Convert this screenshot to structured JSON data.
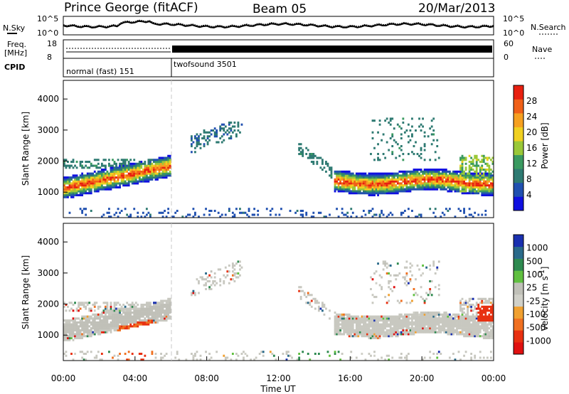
{
  "header": {
    "station": "Prince George (fitACF)",
    "beam": "Beam 05",
    "date": "20/Mar/2013"
  },
  "noise_panel": {
    "left_label": "N.Sky",
    "right_label": "N.Search",
    "left_ticks": [
      "10^5",
      "10^0"
    ],
    "right_ticks": [
      "10^5",
      "10^0"
    ]
  },
  "freq_panel": {
    "left_label_1": "Freq.",
    "left_label_2": "[MHz]",
    "right_label": "Nave",
    "left_ticks": [
      "18",
      "8"
    ],
    "right_ticks": [
      "60",
      "0"
    ]
  },
  "cpid_panel": {
    "label": "CPID",
    "modes": [
      {
        "name": "normal (fast) 151",
        "start_hour": 0,
        "end_hour": 6
      },
      {
        "name": "twofsound 3501",
        "start_hour": 6,
        "end_hour": 24
      }
    ]
  },
  "chart_data": [
    {
      "type": "heatmap",
      "title": "Power",
      "ylabel": "Slant Range [km]",
      "xlabel": "",
      "ylim": [
        180,
        4600
      ],
      "xlim": [
        0,
        24
      ],
      "yticks": [
        "1000",
        "2000",
        "3000",
        "4000"
      ],
      "colorbar": {
        "label": "Power [dB]",
        "ticks": [
          "4",
          "8",
          "12",
          "16",
          "20",
          "24",
          "28"
        ],
        "colors": [
          "#1010e0",
          "#2050b0",
          "#2e7a72",
          "#3a9a60",
          "#9ac838",
          "#f0d020",
          "#f6a020",
          "#f06018",
          "#e82010"
        ]
      }
    },
    {
      "type": "heatmap",
      "title": "Velocity",
      "ylabel": "Slant Range [km]",
      "xlabel": "Time UT",
      "ylim": [
        180,
        4600
      ],
      "xlim": [
        0,
        24
      ],
      "yticks": [
        "1000",
        "2000",
        "3000",
        "4000"
      ],
      "xticks": [
        "00:00",
        "04:00",
        "08:00",
        "12:00",
        "16:00",
        "20:00",
        "00:00"
      ],
      "colorbar": {
        "label_main": "Velocity  [m s",
        "label_sup": "-1",
        "label_end": "]",
        "ticks": [
          "1000",
          "500",
          "100",
          "25",
          "-25",
          "-100",
          "-500",
          "-1000"
        ],
        "colors": [
          "#1a30b0",
          "#2a6a8a",
          "#2e8a50",
          "#60c040",
          "#c0c0b8",
          "#d0d0c8",
          "#f0a030",
          "#f07020",
          "#e83010",
          "#e01010"
        ]
      }
    }
  ]
}
